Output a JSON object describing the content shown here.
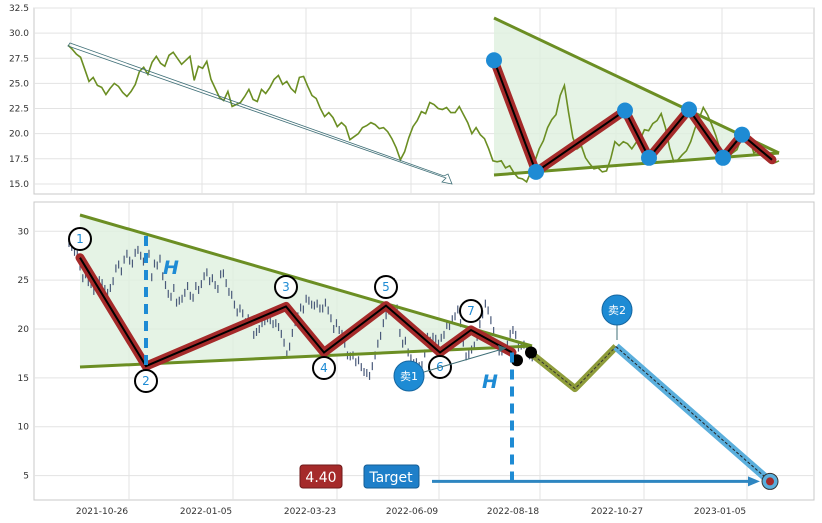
{
  "chart_data": [
    {
      "type": "line",
      "panel": "top",
      "ylim": [
        14,
        32.5
      ],
      "yticks": [
        "15.0",
        "17.5",
        "20.0",
        "22.5",
        "25.0",
        "27.5",
        "30.0",
        "32.5"
      ],
      "grid": true,
      "series": [
        {
          "values": [
            28.8,
            28.4,
            27.9,
            27.6,
            26.4,
            25.2,
            25.6,
            24.8,
            24.6,
            23.9,
            24.5,
            25.0,
            24.7,
            24.1,
            23.7,
            24.2,
            24.9,
            26.2,
            26.6,
            25.9,
            27.1,
            27.7,
            27.0,
            26.7,
            27.8,
            28.1,
            27.5,
            26.9,
            27.3,
            27.7,
            25.3,
            26.7,
            26.5,
            27.2,
            25.4,
            24.5,
            23.6,
            23.3,
            24.2,
            22.7,
            22.9,
            23.1,
            23.7,
            24.4,
            23.4,
            23.2,
            24.4,
            24.0,
            24.6,
            25.4,
            25.8,
            24.9,
            25.2,
            24.5,
            24.1,
            25.6,
            25.7,
            24.7,
            23.8,
            23.5,
            22.5,
            21.7,
            22.1,
            21.6,
            20.7,
            21.1,
            20.7,
            19.4,
            19.7,
            20.0,
            20.6,
            20.8,
            21.1,
            20.9,
            20.5,
            20.6,
            20.2,
            19.5,
            18.6,
            17.4,
            18.2,
            19.6,
            20.7,
            21.3,
            22.2,
            22.0,
            23.1,
            22.9,
            22.5,
            22.4,
            22.6,
            22.1,
            22.1,
            22.7,
            21.9,
            21.1,
            20.0,
            20.6,
            19.9,
            19.5,
            18.5,
            17.3,
            17.2,
            17.3,
            16.6,
            16.8,
            16.1,
            15.6,
            15.5,
            15.2,
            16.2,
            17.3,
            18.5,
            19.3,
            20.6,
            21.4,
            21.9,
            23.8,
            24.8,
            22.1,
            19.6,
            18.5,
            18.8,
            17.6,
            17.0,
            16.5,
            16.6,
            16.2,
            16.3,
            17.5,
            19.2,
            18.8,
            19.2,
            19.0,
            18.5,
            19.1,
            19.4,
            20.4,
            20.3,
            21.0,
            21.3,
            22.0,
            20.6,
            18.6,
            17.2,
            17.4,
            17.9,
            18.3,
            19.2,
            20.5,
            21.5,
            22.6,
            21.9,
            20.9,
            19.8,
            18.4,
            17.7,
            17.7,
            18.1,
            18.4,
            19.5,
            19.9,
            19.4,
            18.1,
            18.3,
            18.4,
            17.7,
            17.3,
            17.1,
            17.3
          ]
        }
      ],
      "pattern_points": [
        27.3,
        16.2,
        22.3,
        17.6,
        22.4,
        17.6,
        19.9
      ]
    },
    {
      "type": "line",
      "panel": "bottom",
      "ylim": [
        2.5,
        33
      ],
      "yticks": [
        "5",
        "10",
        "15",
        "20",
        "25",
        "30"
      ],
      "xticks": [
        "2021-10-26",
        "2022-01-05",
        "2022-03-23",
        "2022-06-09",
        "2022-08-18",
        "2022-10-27",
        "2023-01-05"
      ],
      "grid": true,
      "pattern_points": [
        27.3,
        16.2,
        22.3,
        17.6,
        22.4,
        17.6,
        19.9,
        17.6
      ],
      "pattern_labels": [
        "1",
        "2",
        "3",
        "4",
        "5",
        "6",
        "7"
      ],
      "projection": [
        17.6,
        13.9,
        18.2,
        4.4
      ],
      "height_label": "H",
      "sell_labels": [
        "卖1",
        "卖2"
      ],
      "target": {
        "label": "Target",
        "value": "4.40"
      }
    }
  ],
  "colors": {
    "price_line": "#6b8e23",
    "triangle_line": "#6b8e23",
    "zigzag_outer": "#a52a2a",
    "marker_blue": "#1e8bd4",
    "fill_green": "#dff0df",
    "candles": "#4a5a7a",
    "projection_olive": "#8e9c3a",
    "projection_blue": "#5aaedc",
    "target_red": "#a52a2a"
  }
}
